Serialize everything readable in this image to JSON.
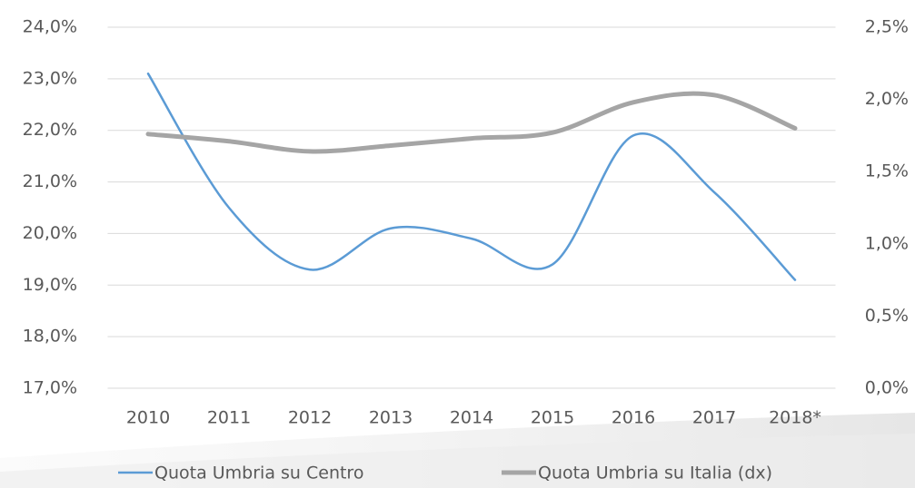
{
  "chart_data": {
    "type": "line",
    "categories": [
      "2010",
      "2011",
      "2012",
      "2013",
      "2014",
      "2015",
      "2016",
      "2017",
      "2018*"
    ],
    "series": [
      {
        "name": "Quota Umbria su Centro",
        "color": "#5b9bd5",
        "values": [
          23.1,
          20.5,
          19.3,
          20.1,
          19.9,
          19.4,
          21.9,
          20.8,
          19.1
        ]
      },
      {
        "name": "Quota Umbria su Italia (dx)",
        "color": "#a5a5a5",
        "axis": "y2",
        "values": [
          1.76,
          1.71,
          1.64,
          1.68,
          1.73,
          1.77,
          1.98,
          2.03,
          1.8
        ]
      }
    ],
    "ylim": [
      17,
      24
    ],
    "yticks": [
      {
        "value": 17,
        "label": "17,0%"
      },
      {
        "value": 18,
        "label": "18,0%"
      },
      {
        "value": 19,
        "label": "19,0%"
      },
      {
        "value": 20,
        "label": "20,0%"
      },
      {
        "value": 21,
        "label": "21,0%"
      },
      {
        "value": 22,
        "label": "22,0%"
      },
      {
        "value": 23,
        "label": "23,0%"
      },
      {
        "value": 24,
        "label": "24,0%"
      }
    ],
    "y2lim": [
      0,
      2.5
    ],
    "y2ticks": [
      {
        "value": 0,
        "label": "0,0%"
      },
      {
        "value": 0.5,
        "label": "0,5%"
      },
      {
        "value": 1,
        "label": "1,0%"
      },
      {
        "value": 1.5,
        "label": "1,5%"
      },
      {
        "value": 2,
        "label": "2,0%"
      },
      {
        "value": 2.5,
        "label": "2,5%"
      }
    ],
    "grid": true,
    "legend": "bottom"
  }
}
